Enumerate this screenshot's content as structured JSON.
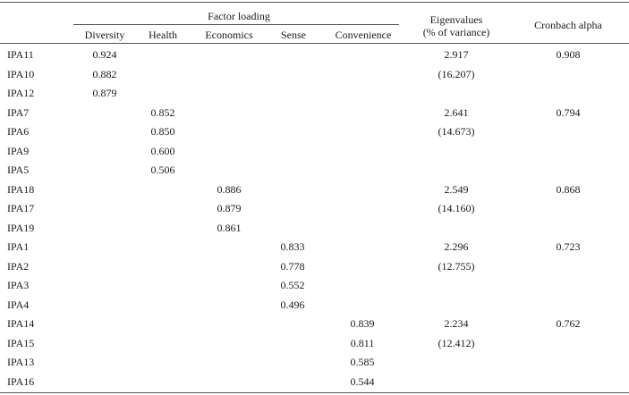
{
  "table": {
    "group_header": "Factor loading",
    "columns": {
      "diversity": "Diversity",
      "health": "Health",
      "economics": "Economics",
      "sense": "Sense",
      "convenience": "Convenience",
      "eigen_line1": "Eigenvalues",
      "eigen_line2": "(% of variance)",
      "alpha": "Cronbach alpha"
    },
    "rows": [
      {
        "item": "IPA11",
        "factor": 0,
        "loading": "0.924",
        "eigen": "2.917",
        "alpha": "0.908"
      },
      {
        "item": "IPA10",
        "factor": 0,
        "loading": "0.882",
        "eigen": "(16.207)",
        "alpha": ""
      },
      {
        "item": "IPA12",
        "factor": 0,
        "loading": "0.879",
        "eigen": "",
        "alpha": ""
      },
      {
        "item": "IPA7",
        "factor": 1,
        "loading": "0.852",
        "eigen": "2.641",
        "alpha": "0.794"
      },
      {
        "item": "IPA6",
        "factor": 1,
        "loading": "0.850",
        "eigen": "(14.673)",
        "alpha": ""
      },
      {
        "item": "IPA9",
        "factor": 1,
        "loading": "0.600",
        "eigen": "",
        "alpha": ""
      },
      {
        "item": "IPA5",
        "factor": 1,
        "loading": "0.506",
        "eigen": "",
        "alpha": ""
      },
      {
        "item": "IPA18",
        "factor": 2,
        "loading": "0.886",
        "eigen": "2.549",
        "alpha": "0.868"
      },
      {
        "item": "IPA17",
        "factor": 2,
        "loading": "0.879",
        "eigen": "(14.160)",
        "alpha": ""
      },
      {
        "item": "IPA19",
        "factor": 2,
        "loading": "0.861",
        "eigen": "",
        "alpha": ""
      },
      {
        "item": "IPA1",
        "factor": 3,
        "loading": "0.833",
        "eigen": "2.296",
        "alpha": "0.723"
      },
      {
        "item": "IPA2",
        "factor": 3,
        "loading": "0.778",
        "eigen": "(12.755)",
        "alpha": ""
      },
      {
        "item": "IPA3",
        "factor": 3,
        "loading": "0.552",
        "eigen": "",
        "alpha": ""
      },
      {
        "item": "IPA4",
        "factor": 3,
        "loading": "0.496",
        "eigen": "",
        "alpha": ""
      },
      {
        "item": "IPA14",
        "factor": 4,
        "loading": "0.839",
        "eigen": "2.234",
        "alpha": "0.762"
      },
      {
        "item": "IPA15",
        "factor": 4,
        "loading": "0.811",
        "eigen": "(12.412)",
        "alpha": ""
      },
      {
        "item": "IPA13",
        "factor": 4,
        "loading": "0.585",
        "eigen": "",
        "alpha": ""
      },
      {
        "item": "IPA16",
        "factor": 4,
        "loading": "0.544",
        "eigen": "",
        "alpha": ""
      }
    ]
  }
}
